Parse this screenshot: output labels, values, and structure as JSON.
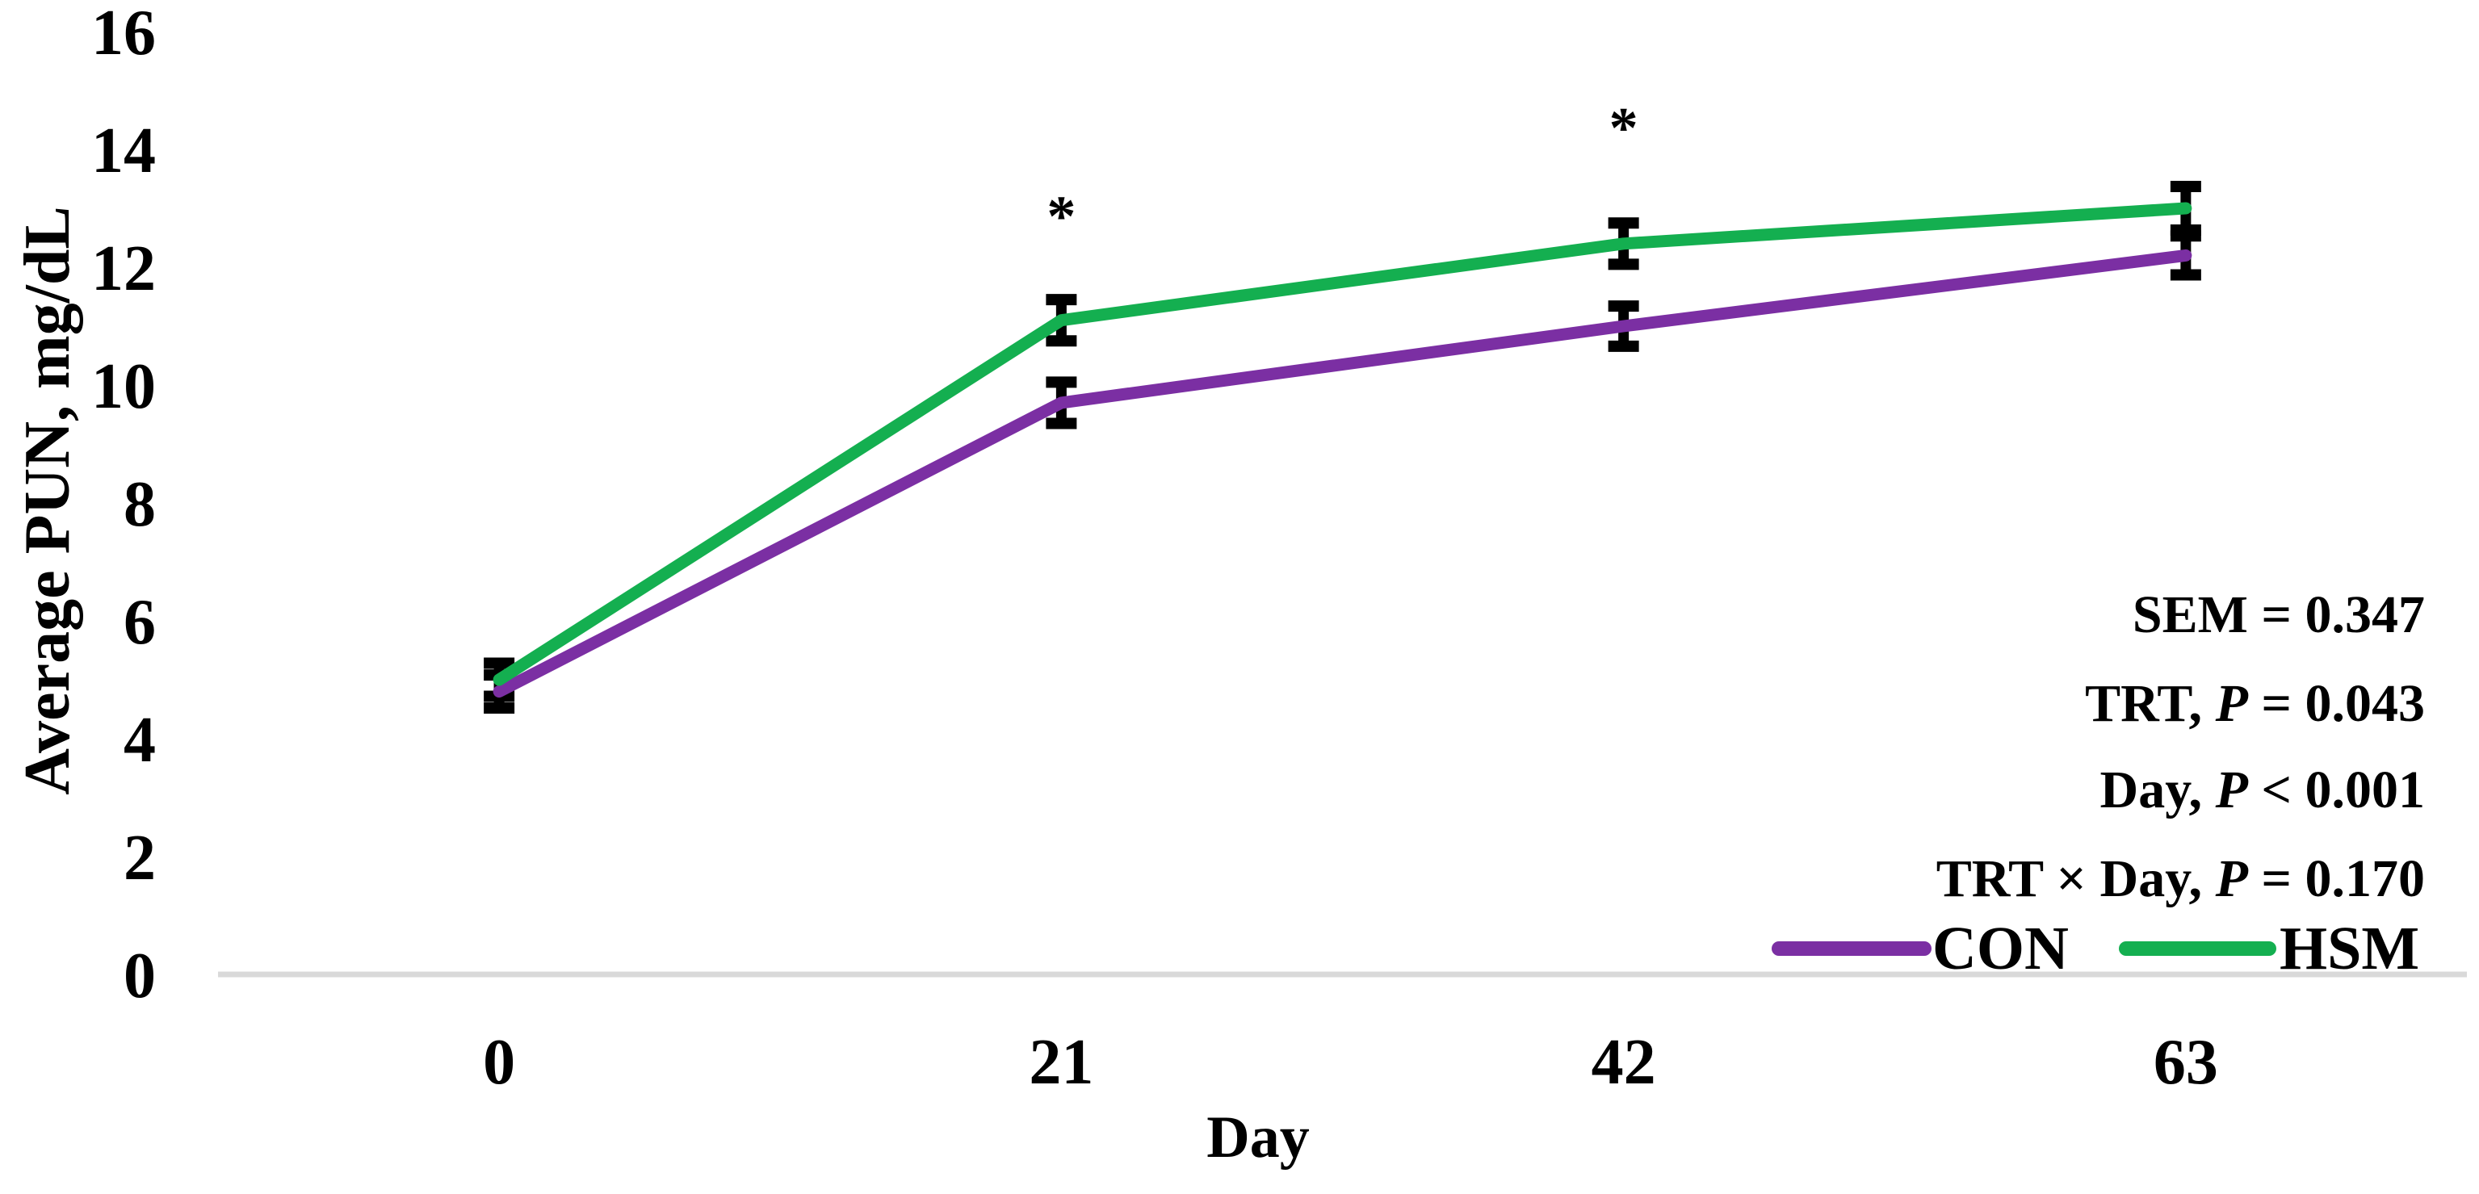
{
  "figure": {
    "background": "#FFFFFF",
    "text_color": "#000000",
    "axis_line_color": "#D9D9D9",
    "error_bar_color": "#000000"
  },
  "chart_data": {
    "type": "line",
    "title": "",
    "xlabel": "Day",
    "ylabel": "Average PUN, mg/dL",
    "categories": [
      "0",
      "21",
      "42",
      "63"
    ],
    "ylim": [
      0,
      16
    ],
    "yticks": [
      0,
      2,
      4,
      6,
      8,
      10,
      12,
      14,
      16
    ],
    "grid": false,
    "legend_position": "bottom-right",
    "series": [
      {
        "name": "CON",
        "color": "#7B2FA3",
        "values": [
          4.8,
          9.7,
          11.0,
          12.2
        ],
        "errors": [
          0.28,
          0.35,
          0.34,
          0.33
        ]
      },
      {
        "name": "HSM",
        "color": "#14AF50",
        "values": [
          5.0,
          11.1,
          12.4,
          13.0
        ],
        "errors": [
          0.28,
          0.35,
          0.35,
          0.37
        ]
      }
    ],
    "annotations": [
      {
        "category_index": 1,
        "y": 13.0,
        "text": "*"
      },
      {
        "category_index": 2,
        "y": 14.5,
        "text": "*"
      }
    ],
    "stats_lines": [
      [
        {
          "t": "SEM = 0.347",
          "i": false
        }
      ],
      [
        {
          "t": "TRT, ",
          "i": false
        },
        {
          "t": "P",
          "i": true
        },
        {
          "t": " = 0.043",
          "i": false
        }
      ],
      [
        {
          "t": "Day, ",
          "i": false
        },
        {
          "t": "P",
          "i": true
        },
        {
          "t": " < 0.001",
          "i": false
        }
      ],
      [
        {
          "t": "TRT × Day, ",
          "i": false
        },
        {
          "t": "P",
          "i": true
        },
        {
          "t": " = 0.170",
          "i": false
        }
      ]
    ],
    "legend": [
      {
        "label": "CON",
        "color": "#7B2FA3"
      },
      {
        "label": "HSM",
        "color": "#14AF50"
      }
    ]
  }
}
